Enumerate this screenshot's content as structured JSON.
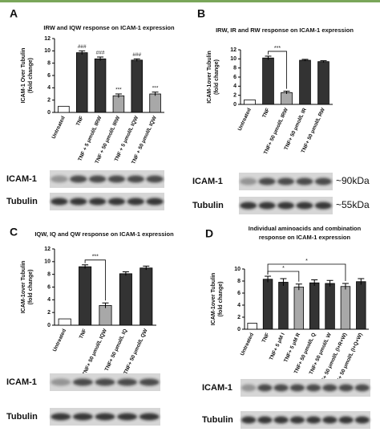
{
  "chart_data": [
    {
      "type": "bar",
      "panel_label": "A",
      "title": [
        "IRW and IQW response on ICAM-1 expression"
      ],
      "ylabel": [
        "ICAM-1 Over Tubulin",
        "(fold change)"
      ],
      "categories": [
        "Untreated",
        "TNF",
        "TNF + 5 μmol/L IRW",
        "TNF + 50 μmol/L IRW",
        "TNF + 5 μmol/L IQW",
        "TNF + 50 μmol/L IQW"
      ],
      "values": [
        1,
        9.7,
        8.7,
        2.7,
        8.5,
        3.0
      ],
      "errors": [
        0,
        0.3,
        0.3,
        0.3,
        0.2,
        0.3
      ],
      "colors": [
        "#ffffff",
        "#333333",
        "#333333",
        "#a8a8a8",
        "#333333",
        "#a8a8a8"
      ],
      "annotations": [
        null,
        "###",
        "###",
        "***",
        "###",
        "***"
      ],
      "annotation_style": "above",
      "ylim": [
        0,
        12
      ],
      "yticks": [
        0,
        2,
        4,
        6,
        8,
        10,
        12
      ],
      "blot_labels": [
        "ICAM-1",
        "Tubulin"
      ]
    },
    {
      "type": "bar",
      "panel_label": "B",
      "title": [
        "IRW, IR and RW response on ICAM-1 expression"
      ],
      "ylabel": [
        "ICAM-1over Tubulin",
        "(fold change)"
      ],
      "categories": [
        "Untreated",
        "TNF",
        "TNF+ 50 μmol/L IRW",
        "TNF+ 50 μmol/L IR",
        "TNF+ 50 μmol/L RW"
      ],
      "values": [
        1,
        10.2,
        2.6,
        9.7,
        9.4
      ],
      "errors": [
        0,
        0.4,
        0.3,
        0.2,
        0.2
      ],
      "colors": [
        "#ffffff",
        "#333333",
        "#a8a8a8",
        "#333333",
        "#333333"
      ],
      "annotations": [
        null,
        null,
        "***",
        null,
        null
      ],
      "annotation_style": "bracket",
      "ylim": [
        0,
        12
      ],
      "yticks": [
        0,
        2,
        4,
        6,
        8,
        10,
        12
      ],
      "blot_labels": [
        "ICAM-1",
        "Tubulin"
      ],
      "size_labels": [
        "~90kDa",
        "~55kDa"
      ]
    },
    {
      "type": "bar",
      "panel_label": "C",
      "title": [
        "IQW, IQ and QW response on ICAM-1 expression"
      ],
      "ylabel": [
        "ICAM-1over Tubulin",
        "(fold change)"
      ],
      "categories": [
        "Untreated",
        "TNF",
        "TNF+ 50 μmol/L IQW",
        "TNF+ 50 μmol/L IQ",
        "TNF+ 50 μmol/L QW"
      ],
      "values": [
        1,
        9.2,
        3.1,
        8.1,
        9.0
      ],
      "errors": [
        0,
        0.3,
        0.4,
        0.3,
        0.3
      ],
      "colors": [
        "#ffffff",
        "#333333",
        "#a8a8a8",
        "#333333",
        "#333333"
      ],
      "annotations": [
        null,
        null,
        "***",
        null,
        null
      ],
      "annotation_style": "bracket",
      "ylim": [
        0,
        12
      ],
      "yticks": [
        0,
        2,
        4,
        6,
        8,
        10,
        12
      ],
      "blot_labels": [
        "ICAM-1",
        "Tubulin"
      ]
    },
    {
      "type": "bar",
      "panel_label": "D",
      "title": [
        "Individual aminoacids and combination",
        "response on ICAM-1 expression"
      ],
      "ylabel": [
        "ICAM-1over Tubulin",
        "(fold change)"
      ],
      "categories": [
        "Untreated",
        "TNF",
        "TNF+ 5 μM I",
        "TNF+ 5 μM R",
        "TNF+ 50 μmol/L Q",
        "TNF+ 50 μmol/L W",
        "TNF+ 50 μmol/L (I+R+W)",
        "TNF+ 50 μmol/L (I+Q+W)"
      ],
      "values": [
        1,
        8.3,
        7.8,
        7.0,
        7.7,
        7.6,
        7.1,
        7.9
      ],
      "errors": [
        0,
        0.5,
        0.6,
        0.5,
        0.5,
        0.5,
        0.5,
        0.5
      ],
      "colors": [
        "#ffffff",
        "#333333",
        "#333333",
        "#a8a8a8",
        "#333333",
        "#333333",
        "#a8a8a8",
        "#333333"
      ],
      "annotations": [
        null,
        null,
        null,
        "*",
        null,
        null,
        "*",
        null
      ],
      "annotation_style": "bracket",
      "ylim": [
        0,
        10
      ],
      "yticks": [
        0,
        2,
        4,
        6,
        8,
        10
      ],
      "blot_labels": [
        "ICAM-1",
        "Tubulin"
      ]
    }
  ]
}
